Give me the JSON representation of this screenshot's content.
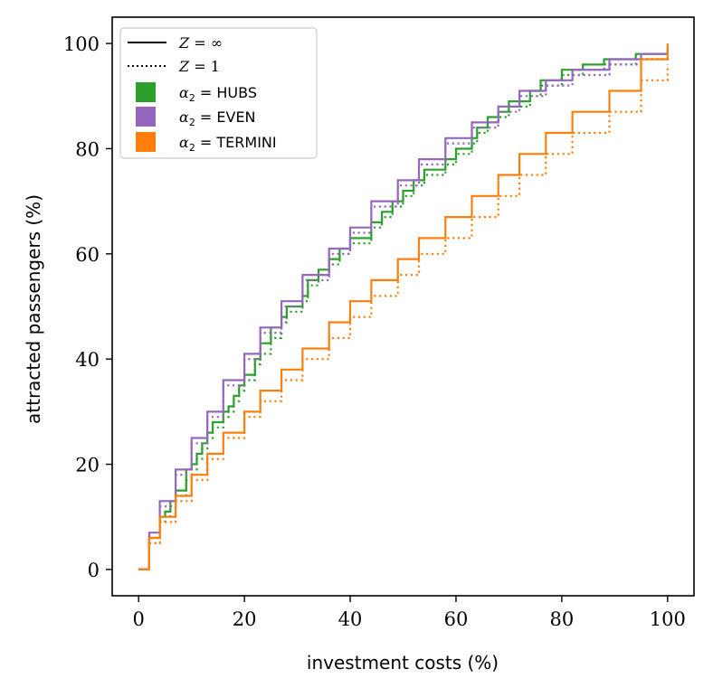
{
  "chart_data": {
    "type": "line",
    "subtype": "step",
    "title": "",
    "xlabel": "investment costs (%)",
    "ylabel": "attracted passengers (%)",
    "xlim": [
      -5,
      105
    ],
    "ylim": [
      -5,
      105
    ],
    "xticks": [
      0,
      20,
      40,
      60,
      80,
      100
    ],
    "yticks": [
      0,
      20,
      40,
      60,
      80,
      100
    ],
    "grid": false,
    "legend_position": "top-left",
    "legend": {
      "linestyles": [
        {
          "id": "solid",
          "dash": "solid",
          "prefix": "Z = ",
          "value": "∞"
        },
        {
          "id": "dotted",
          "dash": "dotted",
          "prefix": "Z = ",
          "value": "1"
        }
      ],
      "groups": [
        {
          "id": "hubs",
          "symbol": "α",
          "subscript": "2",
          "equals": " = ",
          "label": "HUBS",
          "color": "#2ca02c"
        },
        {
          "id": "even",
          "symbol": "α",
          "subscript": "2",
          "equals": " = ",
          "label": "EVEN",
          "color": "#9467bd"
        },
        {
          "id": "termini",
          "symbol": "α",
          "subscript": "2",
          "equals": " = ",
          "label": "TERMINI",
          "color": "#ff7f0e"
        }
      ]
    },
    "series": [
      {
        "name": "HUBS, Z = ∞",
        "group": "hubs",
        "dash": "solid",
        "color": "#2ca02c",
        "x": [
          0,
          2,
          4,
          5,
          6,
          7,
          9,
          10,
          11,
          12,
          13,
          14,
          16,
          17,
          18,
          19,
          20,
          22,
          23,
          25,
          27,
          28,
          31,
          32,
          34,
          36,
          38,
          40,
          44,
          46,
          48,
          50,
          52,
          54,
          58,
          60,
          63,
          64,
          66,
          68,
          70,
          74,
          76,
          80,
          84,
          88,
          94,
          100
        ],
        "y": [
          0,
          6,
          10,
          11,
          13,
          15,
          19,
          20,
          22,
          24,
          26,
          28,
          30,
          31,
          33,
          35,
          37,
          40,
          43,
          46,
          48,
          50,
          52,
          55,
          57,
          59,
          61,
          63,
          66,
          68,
          70,
          72,
          74,
          76,
          78,
          80,
          82,
          84,
          86,
          87,
          89,
          91,
          93,
          95,
          96,
          97,
          98,
          99
        ]
      },
      {
        "name": "HUBS, Z = 1",
        "group": "hubs",
        "dash": "dotted",
        "color": "#2ca02c",
        "x": [
          0,
          2,
          4,
          5,
          6,
          7,
          9,
          10,
          11,
          12,
          13,
          14,
          16,
          17,
          18,
          19,
          20,
          22,
          23,
          25,
          27,
          28,
          31,
          32,
          34,
          36,
          38,
          40,
          44,
          46,
          48,
          50,
          52,
          54,
          58,
          60,
          63,
          64,
          66,
          68,
          70,
          74,
          76,
          80,
          84,
          88,
          94,
          100
        ],
        "y": [
          0,
          5,
          9,
          10,
          12,
          14,
          17,
          19,
          21,
          23,
          25,
          27,
          29,
          30,
          32,
          34,
          36,
          39,
          41,
          44,
          47,
          49,
          51,
          54,
          56,
          58,
          60,
          62,
          65,
          67,
          69,
          71,
          73,
          75,
          77,
          79,
          81,
          83,
          85,
          86,
          88,
          90,
          92,
          94,
          95,
          96,
          97,
          98
        ]
      },
      {
        "name": "EVEN, Z = ∞",
        "group": "even",
        "dash": "solid",
        "color": "#9467bd",
        "x": [
          0,
          2,
          4,
          7,
          10,
          13,
          16,
          20,
          23,
          27,
          31,
          36,
          40,
          44,
          49,
          53,
          58,
          63,
          68,
          72,
          77,
          82,
          89,
          95,
          100
        ],
        "y": [
          0,
          7,
          13,
          19,
          25,
          30,
          36,
          41,
          46,
          51,
          56,
          61,
          65,
          70,
          74,
          78,
          82,
          85,
          88,
          91,
          93,
          95,
          97,
          98,
          99
        ]
      },
      {
        "name": "EVEN, Z = 1",
        "group": "even",
        "dash": "dotted",
        "color": "#9467bd",
        "x": [
          0,
          2,
          4,
          7,
          10,
          13,
          16,
          20,
          23,
          27,
          31,
          36,
          40,
          44,
          49,
          53,
          58,
          63,
          68,
          72,
          77,
          82,
          89,
          95,
          100
        ],
        "y": [
          0,
          6,
          12,
          18,
          24,
          29,
          35,
          40,
          45,
          50,
          55,
          60,
          64,
          69,
          73,
          77,
          81,
          84,
          87,
          90,
          92,
          94,
          96,
          97,
          98
        ]
      },
      {
        "name": "TERMINI, Z = ∞",
        "group": "termini",
        "dash": "solid",
        "color": "#ff7f0e",
        "x": [
          0,
          2,
          4,
          7,
          10,
          13,
          16,
          20,
          23,
          27,
          31,
          36,
          40,
          44,
          49,
          53,
          58,
          63,
          68,
          72,
          77,
          82,
          89,
          95,
          100
        ],
        "y": [
          0,
          6,
          10,
          14,
          18,
          22,
          26,
          30,
          34,
          38,
          42,
          47,
          51,
          55,
          59,
          63,
          67,
          71,
          75,
          79,
          83,
          87,
          91,
          97,
          100
        ]
      },
      {
        "name": "TERMINI, Z = 1",
        "group": "termini",
        "dash": "dotted",
        "color": "#ff7f0e",
        "x": [
          0,
          2,
          4,
          7,
          10,
          13,
          16,
          20,
          23,
          27,
          31,
          36,
          40,
          44,
          49,
          53,
          58,
          63,
          68,
          72,
          77,
          82,
          89,
          95,
          100
        ],
        "y": [
          0,
          5,
          9,
          13,
          17,
          21,
          25,
          29,
          32,
          36,
          40,
          44,
          48,
          52,
          56,
          60,
          63,
          67,
          71,
          75,
          79,
          83,
          87,
          93,
          96
        ]
      }
    ]
  }
}
